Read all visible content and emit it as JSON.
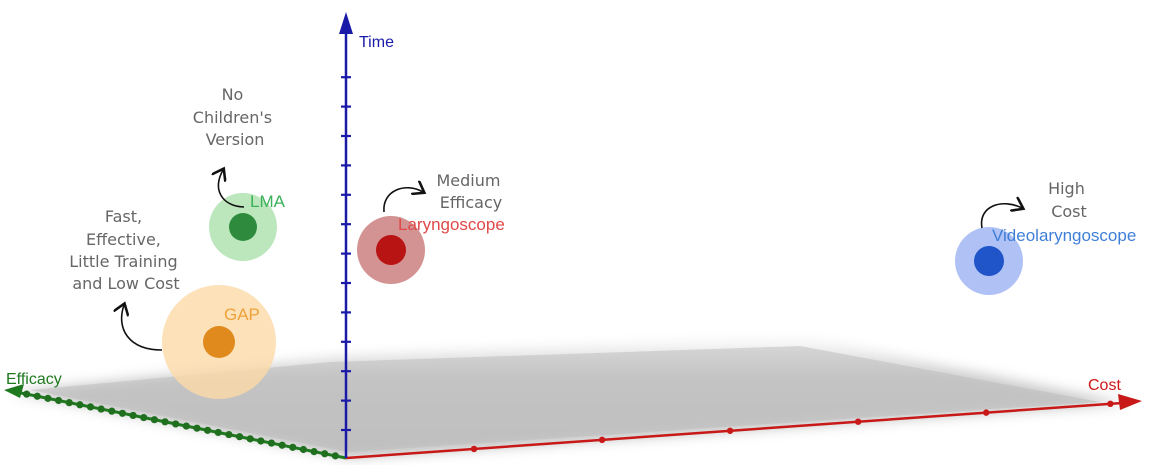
{
  "axes": {
    "time": {
      "label": "Time",
      "color": "#1a1aa8"
    },
    "efficacy": {
      "label": "Efficacy",
      "color": "#1f7a1f"
    },
    "cost": {
      "label": "Cost",
      "color": "#d01818"
    }
  },
  "points": {
    "lma": {
      "label": "LMA",
      "color": "#2e8b3e",
      "halo_color": "#9fdc9f"
    },
    "gap": {
      "label": "GAP",
      "color": "#e08a1e",
      "halo_color": "#fbd9a8"
    },
    "laryngoscope": {
      "label": "Laryngoscope",
      "color": "#b81414",
      "halo_color": "#c97878"
    },
    "videolaryngoscope": {
      "label": "Videolaryngoscope",
      "color": "#1f55c8",
      "halo_color": "#9bb2f2"
    }
  },
  "annotations": {
    "lma_note": [
      "No",
      "Children's",
      "Version"
    ],
    "gap_note": [
      "Fast,",
      "Effective,",
      "Little Training",
      "and Low Cost"
    ],
    "laryngoscope_note": [
      "Medium",
      "Efficacy"
    ],
    "videolaryngoscope_note": [
      "High",
      "Cost"
    ]
  }
}
